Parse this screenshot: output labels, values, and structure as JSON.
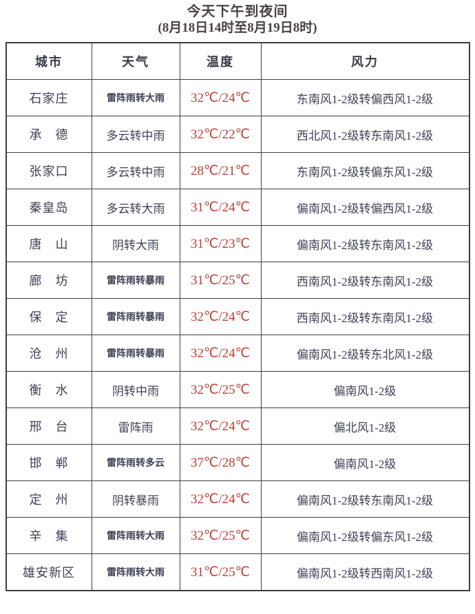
{
  "page": {
    "title": "今天下午到夜间",
    "subtitle": "(8月18日14时至8月19日8时)"
  },
  "table": {
    "columns": [
      "城市",
      "天气",
      "温度",
      "风力"
    ],
    "rows": [
      {
        "city": "石家庄",
        "weather": "雷阵雨转大雨",
        "temp": "32℃/24℃",
        "wind": "东南风1-2级转偏西风1-2级"
      },
      {
        "city": "承　德",
        "weather": "多云转中雨",
        "temp": "32℃/22℃",
        "wind": "西北风1-2级转东南风1-2级"
      },
      {
        "city": "张家口",
        "weather": "多云转中雨",
        "temp": "28℃/21℃",
        "wind": "东南风1-2级转偏东风1-2级"
      },
      {
        "city": "秦皇岛",
        "weather": "多云转大雨",
        "temp": "31℃/24℃",
        "wind": "偏南风1-2级转偏西风1-2级"
      },
      {
        "city": "唐　山",
        "weather": "阴转大雨",
        "temp": "31℃/23℃",
        "wind": "偏南风1-2级转东南风1-2级"
      },
      {
        "city": "廊　坊",
        "weather": "雷阵雨转暴雨",
        "temp": "31℃/25℃",
        "wind": "西南风1-2级转东南风1-2级"
      },
      {
        "city": "保　定",
        "weather": "雷阵雨转暴雨",
        "temp": "32℃/24℃",
        "wind": "西南风1-2级转东南风1-2级"
      },
      {
        "city": "沧　州",
        "weather": "雷阵雨转暴雨",
        "temp": "32℃/24℃",
        "wind": "偏南风1-2级转东北风1-2级"
      },
      {
        "city": "衡　水",
        "weather": "阴转中雨",
        "temp": "32℃/25℃",
        "wind": "偏南风1-2级"
      },
      {
        "city": "邢　台",
        "weather": "雷阵雨",
        "temp": "32℃/24℃",
        "wind": "偏北风1-2级"
      },
      {
        "city": "邯　郸",
        "weather": "雷阵雨转多云",
        "temp": "37℃/28℃",
        "wind": "偏南风1-2级"
      },
      {
        "city": "定　州",
        "weather": "阴转暴雨",
        "temp": "32℃/24℃",
        "wind": "偏南风1-2级转东南风1-2级"
      },
      {
        "city": "辛　集",
        "weather": "雷阵雨转大雨",
        "temp": "32℃/25℃",
        "wind": "偏南风1-2级转偏东风1-2级"
      },
      {
        "city": "雄安新区",
        "weather": "雷阵雨转大雨",
        "temp": "31℃/25℃",
        "wind": "偏南风1-2级转西南风1-2级"
      }
    ]
  },
  "colors": {
    "background": "#ffffff",
    "title_text": "#4a4148",
    "body_text": "#3f4255",
    "temperature_text": "#c23b32",
    "border": "#3e3e3e"
  }
}
